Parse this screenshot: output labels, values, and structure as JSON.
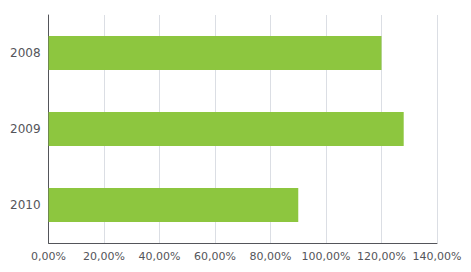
{
  "chart_data": {
    "type": "bar",
    "orientation": "horizontal",
    "categories": [
      "2008",
      "2009",
      "2010"
    ],
    "values": [
      1.2,
      1.28,
      0.9
    ],
    "color": "#8DC63F",
    "xlim": [
      0,
      1.4
    ],
    "xticks": [
      {
        "value": 0.0,
        "label": "0,00%"
      },
      {
        "value": 0.2,
        "label": "20,00%"
      },
      {
        "value": 0.4,
        "label": "40,00%"
      },
      {
        "value": 0.6,
        "label": "60,00%"
      },
      {
        "value": 0.8,
        "label": "80,00%"
      },
      {
        "value": 1.0,
        "label": "100,00%"
      },
      {
        "value": 1.2,
        "label": "120,00%"
      },
      {
        "value": 1.4,
        "label": "140,00%"
      }
    ],
    "grid": true
  }
}
